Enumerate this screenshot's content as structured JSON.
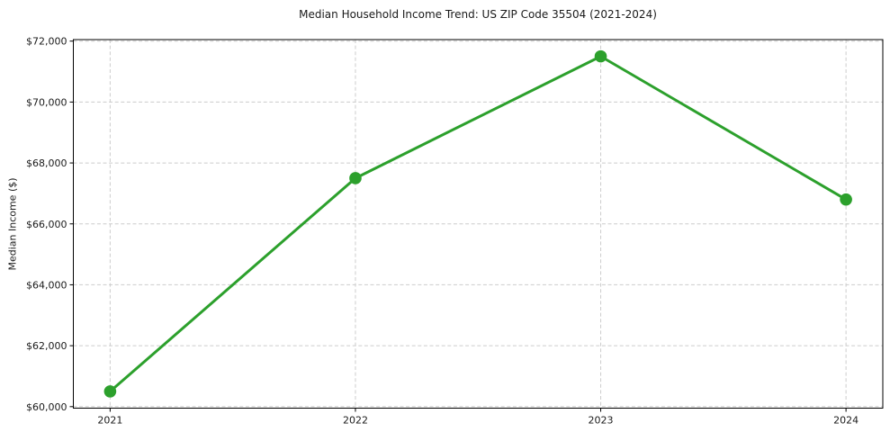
{
  "chart_data": {
    "type": "line",
    "title": "Median Household Income Trend: US ZIP Code 35504 (2021-2024)",
    "xlabel": "",
    "ylabel": "Median Income ($)",
    "x": [
      2021,
      2022,
      2023,
      2024
    ],
    "x_labels": [
      "2021",
      "2022",
      "2023",
      "2024"
    ],
    "values": [
      60500,
      67500,
      71500,
      66800
    ],
    "series_name": "Median Household Income",
    "yticks": [
      60000,
      62000,
      64000,
      66000,
      68000,
      70000,
      72000
    ],
    "ytick_labels": [
      "$60,000",
      "$62,000",
      "$64,000",
      "$66,000",
      "$68,000",
      "$70,000",
      "$72,000"
    ],
    "ylim": [
      59950,
      72050
    ],
    "xlim": [
      2020.85,
      2024.15
    ],
    "grid": {
      "visible": true,
      "style": "dashed",
      "axes": "both"
    },
    "legend_position": "none",
    "marker": "circle",
    "colors": {
      "line": "#2ca02c",
      "marker": "#2ca02c",
      "grid": "#cccccc",
      "spine": "#000000",
      "text": "#1a1a1a",
      "background": "#ffffff"
    }
  }
}
